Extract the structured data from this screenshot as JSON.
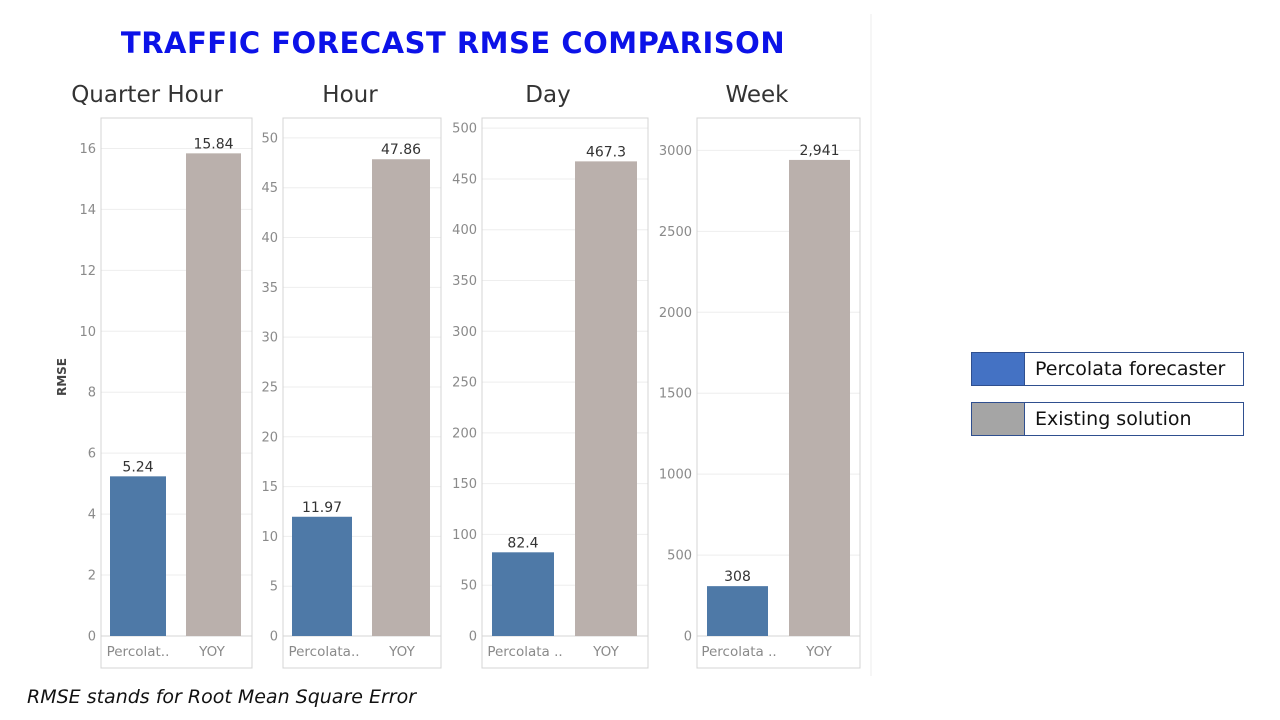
{
  "title": "TRAFFIC FORECAST RMSE COMPARISON",
  "footnote": "RMSE stands for Root Mean Square Error",
  "legend": [
    {
      "label": "Percolata forecaster",
      "color": "#4472c4"
    },
    {
      "label": "Existing solution",
      "color": "#a5a5a5"
    }
  ],
  "colors": {
    "percolata_bar": "#4e79a7",
    "yoy_bar": "#bab0ac"
  },
  "chart_data": [
    {
      "type": "bar",
      "title": "Quarter Hour",
      "ylabel": "RMSE",
      "categories": [
        "Percolat..",
        "YOY"
      ],
      "values": [
        5.24,
        15.84
      ],
      "value_labels": [
        "5.24",
        "15.84"
      ],
      "ylim": [
        0,
        17
      ],
      "yticks": [
        0,
        2,
        4,
        6,
        8,
        10,
        12,
        14,
        16
      ],
      "ytick_labels": [
        "0",
        "2",
        "4",
        "6",
        "8",
        "10",
        "12",
        "14",
        "16"
      ]
    },
    {
      "type": "bar",
      "title": "Hour",
      "ylabel": "",
      "categories": [
        "Percolata..",
        "YOY"
      ],
      "values": [
        11.97,
        47.86
      ],
      "value_labels": [
        "11.97",
        "47.86"
      ],
      "ylim": [
        0,
        52
      ],
      "yticks": [
        0,
        5,
        10,
        15,
        20,
        25,
        30,
        35,
        40,
        45,
        50
      ],
      "ytick_labels": [
        "0",
        "5",
        "10",
        "15",
        "20",
        "25",
        "30",
        "35",
        "40",
        "45",
        "50"
      ]
    },
    {
      "type": "bar",
      "title": "Day",
      "ylabel": "",
      "categories": [
        "Percolata ..",
        "YOY"
      ],
      "values": [
        82.4,
        467.3
      ],
      "value_labels": [
        "82.4",
        "467.3"
      ],
      "ylim": [
        0,
        510
      ],
      "yticks": [
        0,
        50,
        100,
        150,
        200,
        250,
        300,
        350,
        400,
        450,
        500
      ],
      "ytick_labels": [
        "0",
        "50",
        "100",
        "150",
        "200",
        "250",
        "300",
        "350",
        "400",
        "450",
        "500"
      ]
    },
    {
      "type": "bar",
      "title": "Week",
      "ylabel": "",
      "categories": [
        "Percolata ..",
        "YOY"
      ],
      "values": [
        308,
        2941
      ],
      "value_labels": [
        "308",
        "2,941"
      ],
      "ylim": [
        0,
        3200
      ],
      "yticks": [
        0,
        500,
        1000,
        1500,
        2000,
        2500,
        3000
      ],
      "ytick_labels": [
        "0",
        "500",
        "1000",
        "1500",
        "2000",
        "2500",
        "3000"
      ]
    }
  ]
}
